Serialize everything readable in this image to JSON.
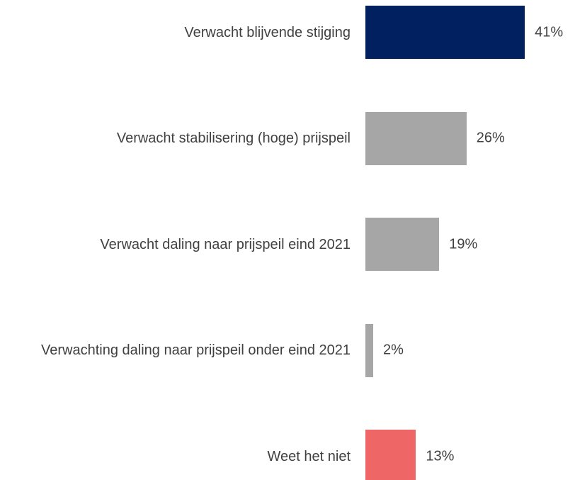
{
  "chart_data": {
    "type": "bar",
    "orientation": "horizontal",
    "categories": [
      "Verwacht blijvende stijging",
      "Verwacht stabilisering (hoge) prijspeil",
      "Verwacht daling naar prijspeil eind 2021",
      "Verwachting daling naar prijspeil onder eind 2021",
      "Weet het niet"
    ],
    "values": [
      41,
      26,
      19,
      2,
      13
    ],
    "value_labels": [
      "41%",
      "26%",
      "19%",
      "2%",
      "13%"
    ],
    "colors": [
      "#002060",
      "#a6a6a6",
      "#a6a6a6",
      "#a6a6a6",
      "#ee6666"
    ]
  }
}
